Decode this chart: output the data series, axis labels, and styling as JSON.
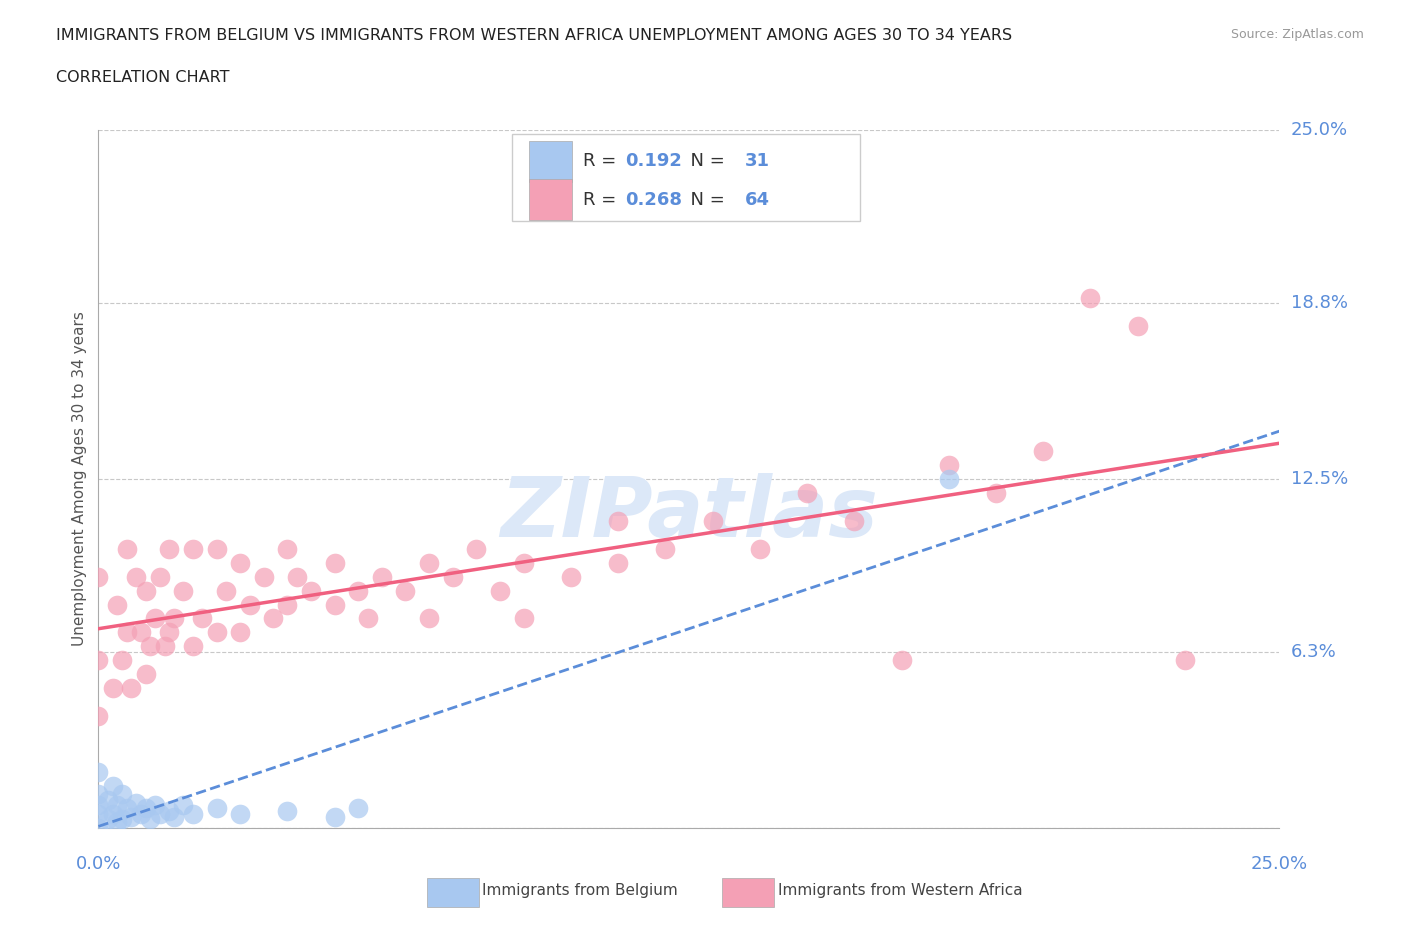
{
  "title_line1": "IMMIGRANTS FROM BELGIUM VS IMMIGRANTS FROM WESTERN AFRICA UNEMPLOYMENT AMONG AGES 30 TO 34 YEARS",
  "title_line2": "CORRELATION CHART",
  "source": "Source: ZipAtlas.com",
  "ylabel": "Unemployment Among Ages 30 to 34 years",
  "xlim": [
    0.0,
    0.25
  ],
  "ylim": [
    0.0,
    0.25
  ],
  "ytick_vals": [
    0.0,
    0.063,
    0.125,
    0.188,
    0.25
  ],
  "ytick_labels": [
    "",
    "6.3%",
    "12.5%",
    "18.8%",
    "25.0%"
  ],
  "belgium_R": 0.192,
  "belgium_N": 31,
  "western_africa_R": 0.268,
  "western_africa_N": 64,
  "belgium_color": "#a8c8f0",
  "western_africa_color": "#f4a0b5",
  "belgium_trend_color": "#5b8dd9",
  "western_africa_trend_color": "#f06080",
  "background_color": "#ffffff",
  "grid_color": "#c8c8c8",
  "label_color": "#5b8dd9",
  "watermark": "ZIPatlas",
  "watermark_color": "#dce8f8",
  "belgium_x": [
    0.0,
    0.0,
    0.0,
    0.0,
    0.0,
    0.002,
    0.002,
    0.003,
    0.003,
    0.004,
    0.004,
    0.005,
    0.005,
    0.006,
    0.007,
    0.008,
    0.009,
    0.01,
    0.011,
    0.012,
    0.013,
    0.015,
    0.016,
    0.018,
    0.02,
    0.025,
    0.03,
    0.04,
    0.05,
    0.055,
    0.18
  ],
  "belgium_y": [
    0.0,
    0.005,
    0.008,
    0.012,
    0.02,
    0.003,
    0.01,
    0.005,
    0.015,
    0.002,
    0.008,
    0.003,
    0.012,
    0.007,
    0.004,
    0.009,
    0.005,
    0.007,
    0.003,
    0.008,
    0.005,
    0.006,
    0.004,
    0.008,
    0.005,
    0.007,
    0.005,
    0.006,
    0.004,
    0.007,
    0.125
  ],
  "western_africa_x": [
    0.0,
    0.0,
    0.0,
    0.003,
    0.004,
    0.005,
    0.006,
    0.006,
    0.007,
    0.008,
    0.009,
    0.01,
    0.01,
    0.011,
    0.012,
    0.013,
    0.014,
    0.015,
    0.015,
    0.016,
    0.018,
    0.02,
    0.02,
    0.022,
    0.025,
    0.025,
    0.027,
    0.03,
    0.03,
    0.032,
    0.035,
    0.037,
    0.04,
    0.04,
    0.042,
    0.045,
    0.05,
    0.05,
    0.055,
    0.057,
    0.06,
    0.065,
    0.07,
    0.07,
    0.075,
    0.08,
    0.085,
    0.09,
    0.09,
    0.1,
    0.11,
    0.11,
    0.12,
    0.13,
    0.14,
    0.15,
    0.16,
    0.17,
    0.18,
    0.19,
    0.2,
    0.21,
    0.22,
    0.23
  ],
  "western_africa_y": [
    0.04,
    0.06,
    0.09,
    0.05,
    0.08,
    0.06,
    0.07,
    0.1,
    0.05,
    0.09,
    0.07,
    0.055,
    0.085,
    0.065,
    0.075,
    0.09,
    0.065,
    0.07,
    0.1,
    0.075,
    0.085,
    0.065,
    0.1,
    0.075,
    0.07,
    0.1,
    0.085,
    0.07,
    0.095,
    0.08,
    0.09,
    0.075,
    0.08,
    0.1,
    0.09,
    0.085,
    0.08,
    0.095,
    0.085,
    0.075,
    0.09,
    0.085,
    0.095,
    0.075,
    0.09,
    0.1,
    0.085,
    0.095,
    0.075,
    0.09,
    0.095,
    0.11,
    0.1,
    0.11,
    0.1,
    0.12,
    0.11,
    0.06,
    0.13,
    0.12,
    0.135,
    0.19,
    0.18,
    0.06
  ]
}
